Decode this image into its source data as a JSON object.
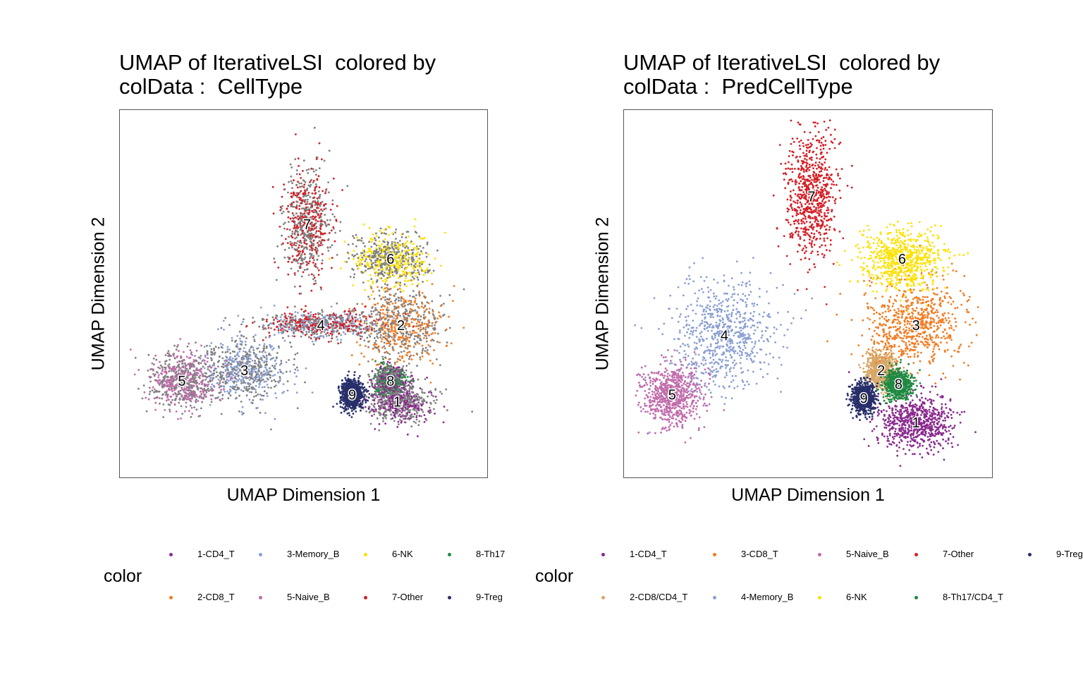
{
  "panels": [
    {
      "title_line1": "UMAP of IterativeLSI  colored by",
      "title_line2": "colData :  CellType",
      "xlabel": "UMAP Dimension 1",
      "ylabel": "UMAP Dimension 2",
      "legend_title": "color",
      "legend": [
        {
          "label": "1-CD4_T",
          "color": "#8A2A8E"
        },
        {
          "label": "2-CD8_T",
          "color": "#F37B20"
        },
        {
          "label": "3-Memory_B",
          "color": "#8A9FD1"
        },
        {
          "label": "5-Naive_B",
          "color": "#C06CAB"
        },
        {
          "label": "6-NK",
          "color": "#FDE100"
        },
        {
          "label": "7-Other",
          "color": "#D51F26"
        },
        {
          "label": "8-Th17",
          "color": "#208A42"
        },
        {
          "label": "9-Treg",
          "color": "#272E6A"
        }
      ],
      "cluster_labels": [
        "1",
        "2",
        "3",
        "4",
        "5",
        "6",
        "7",
        "8",
        "9"
      ]
    },
    {
      "title_line1": "UMAP of IterativeLSI  colored by",
      "title_line2": "colData :  PredCellType",
      "xlabel": "UMAP Dimension 1",
      "ylabel": "UMAP Dimension 2",
      "legend_title": "color",
      "legend": [
        {
          "label": "1-CD4_T",
          "color": "#8A2A8E"
        },
        {
          "label": "2-CD8/CD4_T",
          "color": "#D8A767"
        },
        {
          "label": "3-CD8_T",
          "color": "#F37B20"
        },
        {
          "label": "4-Memory_B",
          "color": "#8A9FD1"
        },
        {
          "label": "5-Naive_B",
          "color": "#C06CAB"
        },
        {
          "label": "6-NK",
          "color": "#FDE100"
        },
        {
          "label": "7-Other",
          "color": "#D51F26"
        },
        {
          "label": "8-Th17/CD4_T",
          "color": "#208A42"
        },
        {
          "label": "9-Treg",
          "color": "#272E6A"
        }
      ],
      "cluster_labels": [
        "1",
        "2",
        "3",
        "4",
        "5",
        "6",
        "7",
        "8",
        "9"
      ]
    }
  ],
  "chart_data": [
    {
      "type": "scatter",
      "title": "UMAP of IterativeLSI  colored by colData :  CellType",
      "xlabel": "UMAP Dimension 1",
      "ylabel": "UMAP Dimension 2",
      "xlim": [
        0,
        10
      ],
      "ylim": [
        0,
        10
      ],
      "grid": false,
      "legend_position": "bottom",
      "clusters": [
        {
          "label": "1",
          "x": 7.7,
          "y": 1.9,
          "colors": [
            "#808080",
            "#8A2A8E"
          ],
          "spread": [
            1.9,
            1.2
          ]
        },
        {
          "label": "2",
          "x": 7.8,
          "y": 4.1,
          "colors": [
            "#808080",
            "#F37B20"
          ],
          "spread": [
            2.6,
            2.4
          ]
        },
        {
          "label": "3",
          "x": 3.3,
          "y": 2.8,
          "colors": [
            "#808080",
            "#8A9FD1"
          ],
          "spread": [
            2.6,
            2.0
          ]
        },
        {
          "label": "4",
          "x": 5.5,
          "y": 4.1,
          "colors": [
            "#808080",
            "#8A9FD1",
            "#D51F26"
          ],
          "spread": [
            3.4,
            0.8
          ]
        },
        {
          "label": "5",
          "x": 1.5,
          "y": 2.5,
          "colors": [
            "#808080",
            "#C06CAB"
          ],
          "spread": [
            2.1,
            1.7
          ]
        },
        {
          "label": "6",
          "x": 7.5,
          "y": 6.0,
          "colors": [
            "#808080",
            "#FDE100"
          ],
          "spread": [
            2.3,
            1.5
          ]
        },
        {
          "label": "7",
          "x": 5.1,
          "y": 7.0,
          "colors": [
            "#808080",
            "#D51F26"
          ],
          "spread": [
            1.4,
            3.4
          ]
        },
        {
          "label": "8",
          "x": 7.5,
          "y": 2.5,
          "colors": [
            "#808080",
            "#208A42",
            "#8A2A8E"
          ],
          "spread": [
            0.9,
            0.9
          ]
        },
        {
          "label": "9",
          "x": 6.4,
          "y": 2.1,
          "colors": [
            "#272E6A"
          ],
          "spread": [
            0.7,
            0.9
          ]
        }
      ]
    },
    {
      "type": "scatter",
      "title": "UMAP of IterativeLSI  colored by colData :  PredCellType",
      "xlabel": "UMAP Dimension 1",
      "ylabel": "UMAP Dimension 2",
      "xlim": [
        0,
        10
      ],
      "ylim": [
        0,
        10
      ],
      "grid": false,
      "legend_position": "bottom",
      "clusters": [
        {
          "label": "1",
          "x": 8.1,
          "y": 1.3,
          "colors": [
            "#8A2A8E"
          ],
          "spread": [
            2.2,
            1.6
          ]
        },
        {
          "label": "2",
          "x": 7.1,
          "y": 2.8,
          "colors": [
            "#D8A767"
          ],
          "spread": [
            0.9,
            1.1
          ]
        },
        {
          "label": "3",
          "x": 8.1,
          "y": 4.1,
          "colors": [
            "#F37B20"
          ],
          "spread": [
            2.9,
            2.7
          ]
        },
        {
          "label": "4",
          "x": 2.6,
          "y": 3.8,
          "colors": [
            "#8A9FD1"
          ],
          "spread": [
            3.0,
            3.4
          ]
        },
        {
          "label": "5",
          "x": 1.1,
          "y": 2.1,
          "colors": [
            "#C06CAB"
          ],
          "spread": [
            1.8,
            1.8
          ]
        },
        {
          "label": "6",
          "x": 7.7,
          "y": 6.0,
          "colors": [
            "#FDE100"
          ],
          "spread": [
            2.5,
            1.8
          ]
        },
        {
          "label": "7",
          "x": 5.1,
          "y": 7.8,
          "colors": [
            "#D51F26"
          ],
          "spread": [
            1.6,
            3.8
          ]
        },
        {
          "label": "8",
          "x": 7.6,
          "y": 2.4,
          "colors": [
            "#208A42"
          ],
          "spread": [
            0.8,
            0.9
          ]
        },
        {
          "label": "9",
          "x": 6.6,
          "y": 2.0,
          "colors": [
            "#272E6A"
          ],
          "spread": [
            0.7,
            0.9
          ]
        }
      ]
    }
  ]
}
